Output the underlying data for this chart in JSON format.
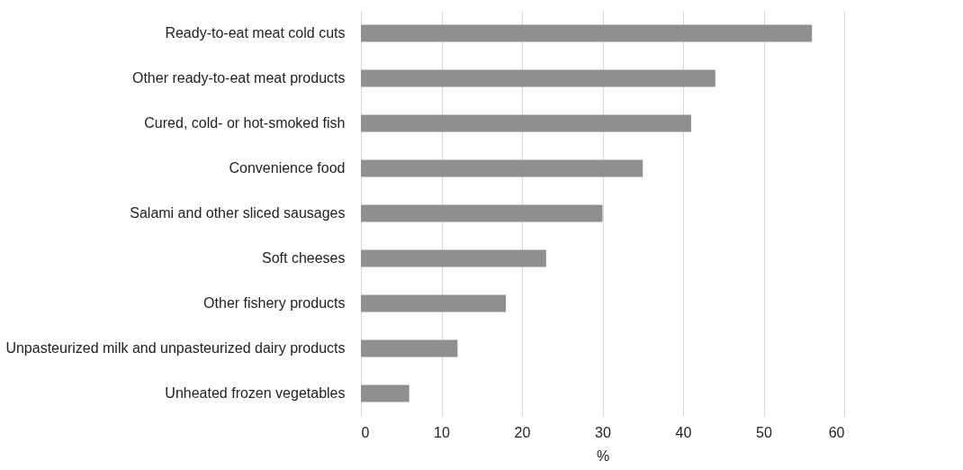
{
  "chart_data": {
    "type": "bar",
    "orientation": "horizontal",
    "xlabel": "%",
    "categories": [
      "Ready-to-eat meat cold cuts",
      "Other ready-to-eat meat products",
      "Cured, cold- or hot-smoked fish",
      "Convenience food",
      "Salami and other sliced sausages",
      "Soft cheeses",
      "Other fishery products",
      "Unpasteurized milk and unpasteurized dairy products",
      "Unheated frozen vegetables"
    ],
    "values": [
      56,
      44,
      41,
      35,
      30,
      23,
      18,
      12,
      6
    ],
    "color": "#8f8f8f",
    "xlim": [
      0,
      60
    ],
    "xticks": [
      0,
      10,
      20,
      30,
      40,
      50,
      60
    ],
    "grid": "x"
  }
}
